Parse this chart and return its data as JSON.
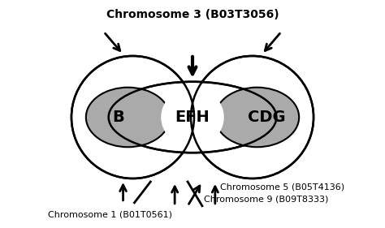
{
  "title": "Chromosome 3 (B03T3056)",
  "title_fontsize": 10,
  "label_B": "B",
  "label_EFH": "EFH",
  "label_CDG": "CDG",
  "label_chr1": "Chromosome 1 (B01T0561)",
  "label_chr5": "Chromosome 5 (B05T4136)",
  "label_chr9": "Chromosome 9 (B09T8333)",
  "gray_color": "#aaaaaa",
  "white_color": "#ffffff",
  "black_color": "#000000",
  "bg_color": "#ffffff",
  "label_fontsize": 8,
  "inner_label_fontsize": 14,
  "lw_outer": 1.8,
  "lw_inner": 1.5
}
